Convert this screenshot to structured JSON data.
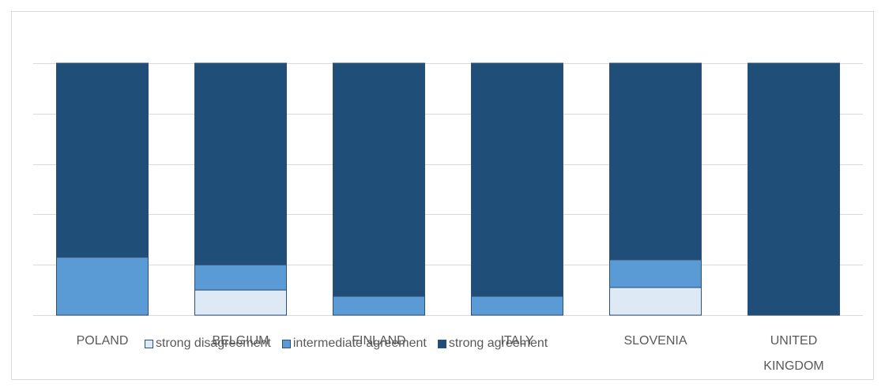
{
  "chart_data": {
    "type": "bar",
    "stacked": true,
    "categories": [
      "POLAND",
      "BELGIUM",
      "FINLAND",
      "ITALY",
      "SLOVENIA",
      "UNITED KINGDOM"
    ],
    "series": [
      {
        "name": "strong disagreement",
        "color": "#dee9f6",
        "values": [
          0,
          10,
          0,
          0,
          11,
          0
        ]
      },
      {
        "name": "intermediate  agreement",
        "color": "#5b9bd5",
        "values": [
          23,
          10,
          7.5,
          7.5,
          11,
          0
        ]
      },
      {
        "name": "strong agreement",
        "color": "#1f4e79",
        "values": [
          77,
          80,
          92.5,
          92.5,
          78,
          100
        ]
      }
    ],
    "ylim": [
      0,
      100
    ],
    "yticks": [
      0,
      20,
      40,
      60,
      80,
      100
    ],
    "grid": true
  }
}
